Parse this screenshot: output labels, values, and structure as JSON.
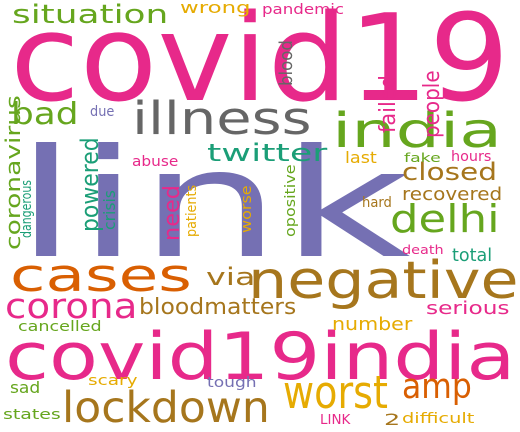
{
  "word_cloud": {
    "colors": {
      "pink": "#e7298a",
      "purple": "#7570b3",
      "green": "#66a61e",
      "orange": "#d95f02",
      "gold": "#e6ab02",
      "brown": "#a6761d",
      "teal": "#1b9e77",
      "gray": "#666666"
    },
    "words": [
      {
        "text": "covid19",
        "color": "#e7298a"
      },
      {
        "text": "link",
        "color": "#7570b3"
      },
      {
        "text": "covid19india",
        "color": "#e7298a"
      },
      {
        "text": "negative",
        "color": "#a6761d"
      },
      {
        "text": "cases",
        "color": "#d95f02"
      },
      {
        "text": "illness",
        "color": "#666666"
      },
      {
        "text": "india",
        "color": "#66a61e"
      },
      {
        "text": "lockdown",
        "color": "#a6761d"
      },
      {
        "text": "worst",
        "color": "#e6ab02"
      },
      {
        "text": "corona",
        "color": "#e7298a"
      },
      {
        "text": "delhi",
        "color": "#66a61e"
      },
      {
        "text": "situation",
        "color": "#66a61e"
      },
      {
        "text": "bad",
        "color": "#66a61e"
      },
      {
        "text": "amp",
        "color": "#d95f02"
      },
      {
        "text": "twitter",
        "color": "#1b9e77"
      },
      {
        "text": "closed",
        "color": "#a6761d"
      },
      {
        "text": "recovered",
        "color": "#a6761d"
      },
      {
        "text": "bloodmatters",
        "color": "#a6761d"
      },
      {
        "text": "via",
        "color": "#a6761d"
      },
      {
        "text": "serious",
        "color": "#e7298a"
      },
      {
        "text": "total",
        "color": "#1b9e77"
      },
      {
        "text": "number",
        "color": "#e6ab02"
      },
      {
        "text": "powered",
        "color": "#1b9e77"
      },
      {
        "text": "crisis",
        "color": "#1b9e77"
      },
      {
        "text": "need",
        "color": "#e7298a"
      },
      {
        "text": "coronavirus",
        "color": "#66a61e"
      },
      {
        "text": "people",
        "color": "#e7298a"
      },
      {
        "text": "failed",
        "color": "#e7298a"
      },
      {
        "text": "wrong",
        "color": "#e6ab02"
      },
      {
        "text": "last",
        "color": "#e6ab02"
      },
      {
        "text": "sad",
        "color": "#66a61e"
      },
      {
        "text": "pandemic",
        "color": "#e7298a"
      },
      {
        "text": "blood",
        "color": "#666666"
      },
      {
        "text": "due",
        "color": "#7570b3"
      },
      {
        "text": "abuse",
        "color": "#e7298a"
      },
      {
        "text": "fake",
        "color": "#66a61e"
      },
      {
        "text": "hours",
        "color": "#e7298a"
      },
      {
        "text": "dangerous",
        "color": "#1b9e77"
      },
      {
        "text": "patients",
        "color": "#e6ab02"
      },
      {
        "text": "worse",
        "color": "#e6ab02"
      },
      {
        "text": "opositive",
        "color": "#66a61e"
      },
      {
        "text": "hard",
        "color": "#a6761d"
      },
      {
        "text": "death",
        "color": "#e7298a"
      },
      {
        "text": "cancelled",
        "color": "#66a61e"
      },
      {
        "text": "scary",
        "color": "#e6ab02"
      },
      {
        "text": "tough",
        "color": "#7570b3"
      },
      {
        "text": "states",
        "color": "#66a61e"
      },
      {
        "text": "LINK",
        "color": "#e7298a"
      },
      {
        "text": "2",
        "color": "#a6761d"
      },
      {
        "text": "difficult",
        "color": "#e6ab02"
      }
    ]
  }
}
